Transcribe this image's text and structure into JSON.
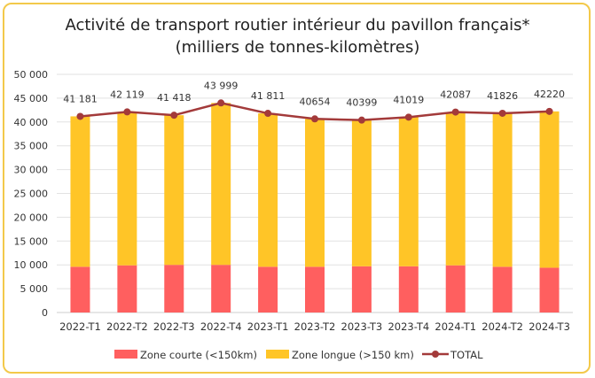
{
  "chart_data": {
    "type": "bar",
    "stacked": true,
    "title_line1": "Activité de transport routier intérieur du pavillon français*",
    "title_line2": "(milliers de tonnes-kilomètres)",
    "categories": [
      "2022-T1",
      "2022-T2",
      "2022-T3",
      "2022-T4",
      "2023-T1",
      "2023-T2",
      "2023-T3",
      "2023-T4",
      "2024-T1",
      "2024-T2",
      "2024-T3"
    ],
    "series": [
      {
        "name": "Zone courte (<150km)",
        "type": "bar",
        "color": "#ff5f5f",
        "values": [
          9600,
          9900,
          10000,
          10000,
          9600,
          9600,
          9700,
          9700,
          9900,
          9600,
          9400
        ]
      },
      {
        "name": "Zone longue (>150 km)",
        "type": "bar",
        "color": "#ffc527",
        "values": [
          31581,
          32219,
          31418,
          33999,
          32211,
          31054,
          30699,
          31319,
          32187,
          32226,
          32820
        ]
      },
      {
        "name": "TOTAL",
        "type": "line",
        "color": "#a33a3a",
        "values": [
          41181,
          42119,
          41418,
          43999,
          41811,
          40654,
          40399,
          41019,
          42087,
          41826,
          42220
        ]
      }
    ],
    "data_labels": [
      "41 181",
      "42 119",
      "41 418",
      "43 999",
      "41 811",
      "40654",
      "40399",
      "41019",
      "42087",
      "41826",
      "42220"
    ],
    "ylim": [
      0,
      50000
    ],
    "yticks": [
      "0",
      "5 000",
      "10 000",
      "15 000",
      "20 000",
      "25 000",
      "30 000",
      "35 000",
      "40 000",
      "45 000",
      "50 000"
    ],
    "grid": true,
    "legend_position": "bottom"
  }
}
